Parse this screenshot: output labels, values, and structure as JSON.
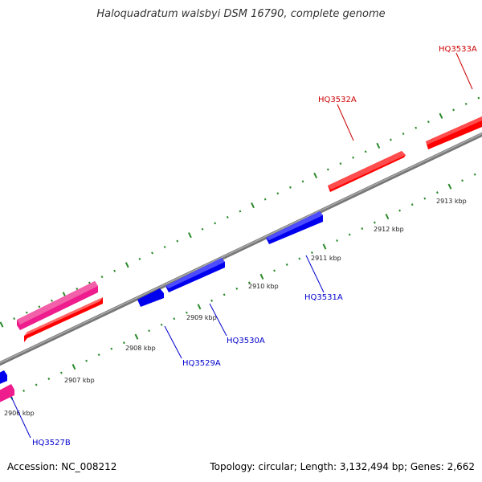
{
  "title": "Haloquadratum walsbyi DSM 16790, complete genome",
  "footer": {
    "accession": "Accession: NC_008212",
    "summary": "Topology: circular; Length: 3,132,494 bp; Genes: 2,662"
  },
  "ticks": [
    "2906 kbp",
    "2907 kbp",
    "2908 kbp",
    "2909 kbp",
    "2910 kbp",
    "2911 kbp",
    "2912 kbp",
    "2913 kbp"
  ],
  "genes": [
    {
      "label": "HQ3527B",
      "color": "#0000cc"
    },
    {
      "label": "HQ3529A",
      "color": "#0000cc"
    },
    {
      "label": "HQ3530A",
      "color": "#0000cc"
    },
    {
      "label": "HQ3531A",
      "color": "#0000cc"
    },
    {
      "label": "HQ3532A",
      "color": "#cc0000"
    },
    {
      "label": "HQ3533A",
      "color": "#cc0000"
    }
  ],
  "colors": {
    "forward": "#ff0000",
    "reverse": "#0000ee",
    "rna": "#ee1c8c",
    "backbone": "#888888",
    "tick": "#2a8a2a"
  }
}
